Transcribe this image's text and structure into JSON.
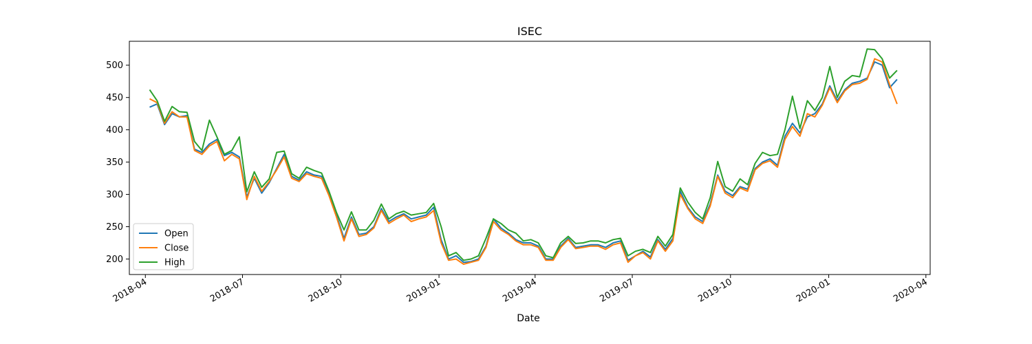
{
  "chart_data": {
    "type": "line",
    "title": "ISEC",
    "xlabel": "Date",
    "ylabel": "",
    "xlim": [
      "2018-03-17",
      "2020-04-05"
    ],
    "ylim": [
      176,
      537
    ],
    "x_ticks": [
      "2018-04-01",
      "2018-07-01",
      "2018-10-01",
      "2019-01-01",
      "2019-04-01",
      "2019-07-01",
      "2019-10-01",
      "2020-01-01",
      "2020-04-01"
    ],
    "x_tick_labels": [
      "2018-04",
      "2018-07",
      "2018-10",
      "2019-01",
      "2019-04",
      "2019-07",
      "2019-10",
      "2020-01",
      "2020-04"
    ],
    "y_ticks": [
      200,
      250,
      300,
      350,
      400,
      450,
      500
    ],
    "y_tick_labels": [
      "200",
      "250",
      "300",
      "350",
      "400",
      "450",
      "500"
    ],
    "grid": false,
    "legend_position": "lower-left",
    "x": [
      "2018-04-05",
      "2018-04-12",
      "2018-04-19",
      "2018-04-26",
      "2018-05-03",
      "2018-05-10",
      "2018-05-17",
      "2018-05-24",
      "2018-05-31",
      "2018-06-07",
      "2018-06-14",
      "2018-06-21",
      "2018-06-28",
      "2018-07-05",
      "2018-07-12",
      "2018-07-19",
      "2018-07-26",
      "2018-08-02",
      "2018-08-09",
      "2018-08-16",
      "2018-08-23",
      "2018-08-30",
      "2018-09-06",
      "2018-09-13",
      "2018-09-20",
      "2018-09-27",
      "2018-10-04",
      "2018-10-11",
      "2018-10-18",
      "2018-10-25",
      "2018-11-01",
      "2018-11-08",
      "2018-11-15",
      "2018-11-22",
      "2018-11-29",
      "2018-12-06",
      "2018-12-13",
      "2018-12-20",
      "2018-12-27",
      "2019-01-03",
      "2019-01-10",
      "2019-01-17",
      "2019-01-24",
      "2019-01-31",
      "2019-02-07",
      "2019-02-14",
      "2019-02-21",
      "2019-02-28",
      "2019-03-07",
      "2019-03-14",
      "2019-03-21",
      "2019-03-28",
      "2019-04-04",
      "2019-04-11",
      "2019-04-18",
      "2019-04-25",
      "2019-05-02",
      "2019-05-09",
      "2019-05-16",
      "2019-05-23",
      "2019-05-30",
      "2019-06-06",
      "2019-06-13",
      "2019-06-20",
      "2019-06-27",
      "2019-07-04",
      "2019-07-11",
      "2019-07-18",
      "2019-07-25",
      "2019-08-01",
      "2019-08-08",
      "2019-08-15",
      "2019-08-22",
      "2019-08-29",
      "2019-09-05",
      "2019-09-12",
      "2019-09-19",
      "2019-09-26",
      "2019-10-03",
      "2019-10-10",
      "2019-10-17",
      "2019-10-24",
      "2019-10-31",
      "2019-11-07",
      "2019-11-14",
      "2019-11-21",
      "2019-11-28",
      "2019-12-05",
      "2019-12-12",
      "2019-12-19",
      "2019-12-26",
      "2020-01-02",
      "2020-01-09",
      "2020-01-16",
      "2020-01-23",
      "2020-01-30",
      "2020-02-06",
      "2020-02-13",
      "2020-02-20",
      "2020-02-27",
      "2020-03-05"
    ],
    "series": [
      {
        "name": "Open",
        "color": "#1f77b4",
        "values": [
          435,
          440,
          408,
          425,
          420,
          422,
          370,
          365,
          378,
          385,
          360,
          365,
          358,
          296,
          325,
          302,
          318,
          340,
          362,
          328,
          322,
          335,
          330,
          328,
          300,
          268,
          232,
          265,
          238,
          240,
          250,
          278,
          258,
          265,
          270,
          262,
          265,
          268,
          280,
          230,
          200,
          205,
          195,
          196,
          200,
          220,
          262,
          248,
          240,
          230,
          225,
          225,
          220,
          200,
          200,
          220,
          232,
          218,
          220,
          222,
          222,
          218,
          225,
          228,
          198,
          205,
          212,
          203,
          230,
          215,
          232,
          305,
          280,
          265,
          258,
          285,
          330,
          305,
          298,
          312,
          308,
          340,
          350,
          355,
          345,
          390,
          410,
          395,
          420,
          425,
          440,
          468,
          445,
          462,
          472,
          475,
          480,
          505,
          500,
          465,
          478
        ]
      },
      {
        "name": "Close",
        "color": "#ff7f0e",
        "values": [
          448,
          442,
          410,
          428,
          420,
          420,
          368,
          362,
          375,
          382,
          352,
          362,
          355,
          292,
          328,
          305,
          320,
          338,
          358,
          325,
          320,
          332,
          328,
          325,
          298,
          265,
          228,
          262,
          235,
          238,
          248,
          275,
          255,
          262,
          268,
          258,
          262,
          265,
          275,
          225,
          198,
          200,
          192,
          195,
          198,
          218,
          258,
          245,
          238,
          228,
          222,
          222,
          218,
          198,
          198,
          218,
          230,
          216,
          218,
          220,
          220,
          215,
          222,
          225,
          195,
          205,
          210,
          200,
          228,
          212,
          228,
          300,
          278,
          262,
          255,
          282,
          328,
          302,
          295,
          310,
          305,
          338,
          348,
          352,
          342,
          385,
          405,
          390,
          425,
          420,
          438,
          465,
          442,
          460,
          470,
          472,
          478,
          510,
          505,
          470,
          440
        ]
      },
      {
        "name": "High",
        "color": "#2ca02c",
        "values": [
          462,
          445,
          413,
          436,
          428,
          427,
          382,
          368,
          415,
          389,
          362,
          368,
          389,
          304,
          335,
          311,
          324,
          365,
          367,
          332,
          325,
          342,
          337,
          333,
          305,
          272,
          245,
          273,
          245,
          245,
          260,
          285,
          262,
          270,
          274,
          268,
          270,
          272,
          286,
          250,
          205,
          210,
          198,
          200,
          205,
          232,
          262,
          255,
          245,
          240,
          228,
          230,
          225,
          205,
          202,
          225,
          235,
          224,
          225,
          228,
          228,
          225,
          230,
          232,
          205,
          212,
          215,
          210,
          235,
          220,
          238,
          310,
          288,
          272,
          262,
          295,
          351,
          312,
          305,
          324,
          315,
          348,
          365,
          360,
          362,
          400,
          452,
          402,
          445,
          430,
          450,
          498,
          450,
          475,
          484,
          482,
          525,
          524,
          510,
          480,
          492
        ]
      }
    ]
  }
}
